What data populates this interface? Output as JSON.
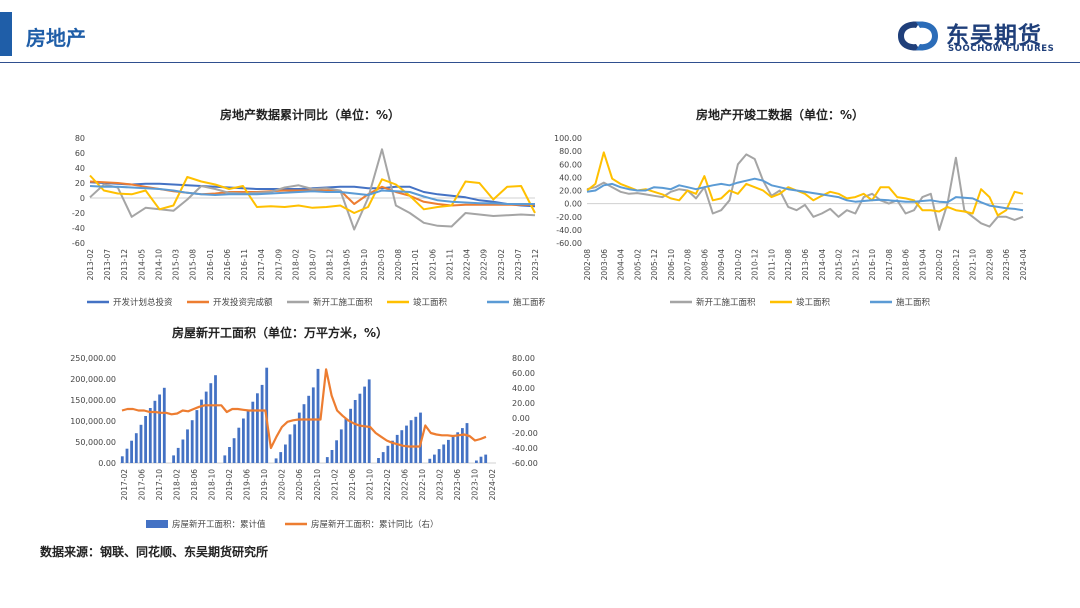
{
  "header": {
    "title": "房地产",
    "logo_cn": "东吴期货",
    "logo_en": "SOOCHOW FUTURES",
    "accent_color": "#1f5ea8"
  },
  "source": "数据来源：钢联、同花顺、东吴期货研究所",
  "chart_data": [
    {
      "type": "line",
      "title": "房地产数据累计同比（单位：%）",
      "xlabel": "",
      "ylabel": "",
      "ylim": [
        -60,
        80
      ],
      "yticks": [
        "80",
        "60",
        "40",
        "20",
        "0",
        "-20",
        "-40",
        "-60"
      ],
      "x_tick_labels": [
        "2013-02",
        "2013-07",
        "2013-12",
        "2014-05",
        "2014-10",
        "2015-03",
        "2015-08",
        "2016-01",
        "2016-06",
        "2016-11",
        "2017-04",
        "2017-09",
        "2018-02",
        "2018-07",
        "2018-12",
        "2019-05",
        "2019-10",
        "2020-03",
        "2020-08",
        "2021-01",
        "2021-06",
        "2021-11",
        "2022-04",
        "2022-09",
        "2023-02",
        "2023-07",
        "2023-12"
      ],
      "legend_position": "bottom",
      "grid": false,
      "series": [
        {
          "name": "开发计划总投资",
          "color": "#4472c4",
          "values": [
            21,
            20,
            19,
            18,
            19,
            19,
            18,
            17,
            16,
            15,
            14,
            13,
            12,
            12,
            12,
            12,
            13,
            14,
            15,
            15,
            13,
            13,
            15,
            15,
            8,
            5,
            3,
            1,
            -3,
            -5,
            -8,
            -10,
            -11
          ]
        },
        {
          "name": "开发投资完成额",
          "color": "#ed7d31",
          "values": [
            22,
            21,
            20,
            18,
            15,
            12,
            9,
            7,
            5,
            6,
            8,
            8,
            8,
            9,
            10,
            10,
            10,
            10,
            10,
            -8,
            5,
            15,
            8,
            3,
            -5,
            -8,
            -10,
            -9,
            -9,
            -9,
            -9,
            -9,
            -9
          ]
        },
        {
          "name": "新开工施工面积",
          "color": "#a5a5a5",
          "values": [
            1,
            18,
            14,
            -25,
            -13,
            -15,
            -17,
            -2,
            16,
            12,
            7,
            6,
            7,
            8,
            14,
            17,
            12,
            13,
            10,
            -42,
            0,
            65,
            -10,
            -20,
            -33,
            -37,
            -38,
            -20,
            -22,
            -24,
            -23,
            -22,
            -23
          ]
        },
        {
          "name": "竣工面积",
          "color": "#ffc000",
          "values": [
            30,
            10,
            6,
            5,
            10,
            -15,
            -10,
            28,
            22,
            18,
            12,
            16,
            -12,
            -11,
            -12,
            -10,
            -13,
            -12,
            -10,
            -20,
            -12,
            25,
            18,
            3,
            -15,
            -12,
            -10,
            22,
            20,
            -2,
            15,
            16,
            -20
          ]
        },
        {
          "name": "施工面积",
          "color": "#5b9bd5",
          "values": [
            16,
            15,
            15,
            14,
            13,
            12,
            10,
            7,
            5,
            4,
            5,
            5,
            5,
            6,
            7,
            8,
            9,
            8,
            8,
            6,
            4,
            10,
            9,
            8,
            2,
            -3,
            -5,
            -6,
            -7,
            -7,
            -8,
            -8,
            -8
          ]
        }
      ]
    },
    {
      "type": "line",
      "title": "房地产开竣工数据（单位：%）",
      "xlabel": "",
      "ylabel": "",
      "ylim": [
        -60,
        100
      ],
      "yticks": [
        "100.00",
        "80.00",
        "60.00",
        "40.00",
        "20.00",
        "0.00",
        "-20.00",
        "-40.00",
        "-60.00"
      ],
      "x_tick_labels": [
        "2002-08",
        "2003-06",
        "2004-04",
        "2005-02",
        "2005-12",
        "2006-10",
        "2007-08",
        "2008-06",
        "2009-04",
        "2010-02",
        "2010-12",
        "2011-10",
        "2012-08",
        "2013-06",
        "2014-04",
        "2015-02",
        "2015-12",
        "2016-10",
        "2017-08",
        "2018-06",
        "2019-04",
        "2020-02",
        "2020-12",
        "2021-10",
        "2022-08",
        "2023-06",
        "2024-04"
      ],
      "legend_position": "bottom",
      "grid": false,
      "series": [
        {
          "name": "新开工施工面积",
          "color": "#a5a5a5",
          "values": [
            22,
            25,
            32,
            25,
            18,
            15,
            16,
            14,
            12,
            10,
            18,
            22,
            20,
            8,
            25,
            -15,
            -10,
            5,
            60,
            75,
            68,
            35,
            12,
            20,
            -5,
            -10,
            -2,
            -20,
            -15,
            -8,
            -20,
            -10,
            -15,
            10,
            15,
            5,
            0,
            5,
            -15,
            -10,
            10,
            15,
            -40,
            0,
            70,
            -10,
            -20,
            -30,
            -35,
            -20,
            -20,
            -25,
            -20
          ]
        },
        {
          "name": "竣工面积",
          "color": "#ffc000",
          "values": [
            20,
            30,
            78,
            38,
            30,
            25,
            20,
            22,
            18,
            14,
            8,
            5,
            20,
            15,
            42,
            5,
            8,
            20,
            15,
            30,
            25,
            20,
            10,
            15,
            25,
            20,
            15,
            5,
            12,
            18,
            15,
            8,
            10,
            15,
            5,
            25,
            25,
            10,
            8,
            5,
            -10,
            -10,
            -12,
            -5,
            -10,
            -12,
            -15,
            22,
            10,
            -18,
            -10,
            18,
            15
          ]
        },
        {
          "name": "施工面积",
          "color": "#5b9bd5",
          "values": [
            18,
            20,
            28,
            30,
            25,
            22,
            20,
            20,
            25,
            24,
            22,
            28,
            25,
            22,
            25,
            28,
            30,
            28,
            32,
            35,
            38,
            35,
            28,
            25,
            22,
            20,
            18,
            16,
            14,
            12,
            10,
            5,
            3,
            4,
            5,
            6,
            5,
            4,
            3,
            3,
            4,
            5,
            3,
            2,
            10,
            9,
            8,
            2,
            -3,
            -5,
            -7,
            -8,
            -10
          ]
        }
      ]
    },
    {
      "type": "bar",
      "title": "房屋新开工面积（单位：万平方米，%）",
      "ylim": [
        0,
        250000
      ],
      "yticks": [
        "250,000.00",
        "200,000.00",
        "150,000.00",
        "100,000.00",
        "50,000.00",
        "0.00"
      ],
      "y2lim": [
        -60,
        80
      ],
      "y2ticks": [
        "80.00",
        "60.00",
        "40.00",
        "20.00",
        "0.00",
        "-20.00",
        "-40.00",
        "-60.00"
      ],
      "x_tick_labels": [
        "2017-02",
        "2017-06",
        "2017-10",
        "2018-02",
        "2018-06",
        "2018-10",
        "2019-02",
        "2019-06",
        "2019-10",
        "2020-02",
        "2020-06",
        "2020-10",
        "2021-02",
        "2021-06",
        "2021-10",
        "2022-02",
        "2022-06",
        "2022-10",
        "2023-02",
        "2023-06",
        "2023-10",
        "2024-02"
      ],
      "legend_position": "bottom",
      "series": [
        {
          "name": "房屋新开工面积：累计值",
          "color": "#4472c4",
          "type": "bar",
          "axis": "left",
          "values": [
            16000,
            34000,
            53000,
            71000,
            91000,
            112000,
            131000,
            148000,
            163000,
            179000,
            null,
            18000,
            36000,
            56000,
            80000,
            102000,
            126000,
            151000,
            170000,
            190000,
            209000,
            null,
            18000,
            38000,
            59000,
            84000,
            106000,
            127000,
            146000,
            166000,
            186000,
            227000,
            null,
            11000,
            26000,
            44000,
            68000,
            92000,
            120000,
            140000,
            160000,
            180000,
            224000,
            null,
            14000,
            31000,
            54000,
            80000,
            106000,
            129000,
            150000,
            165000,
            182000,
            199000,
            null,
            12000,
            26000,
            41000,
            53000,
            67000,
            78000,
            89000,
            102000,
            110000,
            120000,
            null,
            10000,
            20000,
            33000,
            44000,
            55000,
            63000,
            73000,
            83000,
            95000,
            null,
            6000,
            15000,
            20000
          ]
        },
        {
          "name": "房屋新开工面积：累计同比（右）",
          "color": "#ed7d31",
          "type": "line",
          "axis": "right",
          "values": [
            10,
            12,
            12,
            10,
            10,
            8,
            8,
            7,
            7,
            5,
            6,
            10,
            9,
            12,
            15,
            17,
            17,
            17,
            17,
            8,
            12,
            12,
            11,
            10,
            10,
            10,
            10,
            -40,
            -25,
            -12,
            -5,
            -3,
            -2,
            -2,
            -2,
            -2,
            -2,
            65,
            30,
            10,
            3,
            -3,
            -7,
            -10,
            -11,
            -12,
            -20,
            -25,
            -30,
            -33,
            -35,
            -37,
            -38,
            -38,
            -38,
            -10,
            -20,
            -22,
            -23,
            -23,
            -24,
            -23,
            -22,
            -24,
            -30,
            -28,
            -25
          ]
        }
      ]
    }
  ]
}
